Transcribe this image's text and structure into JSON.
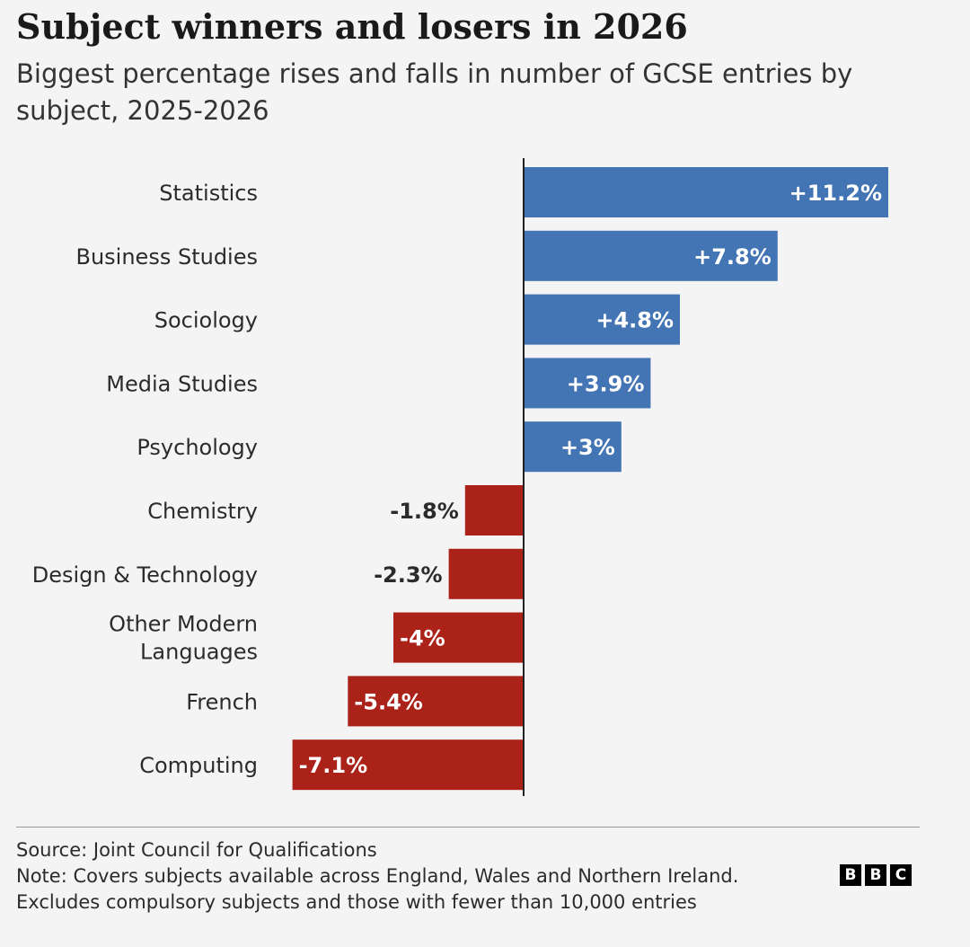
{
  "title": "Subject winners and losers in 2026",
  "subtitle": "Biggest percentage rises and falls in number of GCSE entries by subject, 2025-2026",
  "colors": {
    "positive": "#4374b3",
    "negative": "#aa2218",
    "axis": "#222222",
    "background": "#f4f4f4"
  },
  "chart_data": {
    "type": "bar",
    "orientation": "horizontal",
    "categories": [
      "Statistics",
      "Business Studies",
      "Sociology",
      "Media Studies",
      "Psychology",
      "Chemistry",
      "Design & Technology",
      "Other Modern Languages",
      "French",
      "Computing"
    ],
    "values": [
      11.2,
      7.8,
      4.8,
      3.9,
      3,
      -1.8,
      -2.3,
      -4,
      -5.4,
      -7.1
    ],
    "value_labels": [
      "+11.2%",
      "+7.8%",
      "+4.8%",
      "+3.9%",
      "+3%",
      "-1.8%",
      "-2.3%",
      "-4%",
      "-5.4%",
      "-7.1%"
    ],
    "xlim": [
      -7.1,
      11.2
    ],
    "grid": false,
    "legend": "none"
  },
  "footer": {
    "source": "Source: Joint Council for Qualifications",
    "note": "Note: Covers subjects available across England, Wales and Northern Ireland.",
    "note2": "Excludes compulsory subjects and those with fewer than 10,000 entries"
  },
  "logo": {
    "letters": [
      "B",
      "B",
      "C"
    ]
  }
}
